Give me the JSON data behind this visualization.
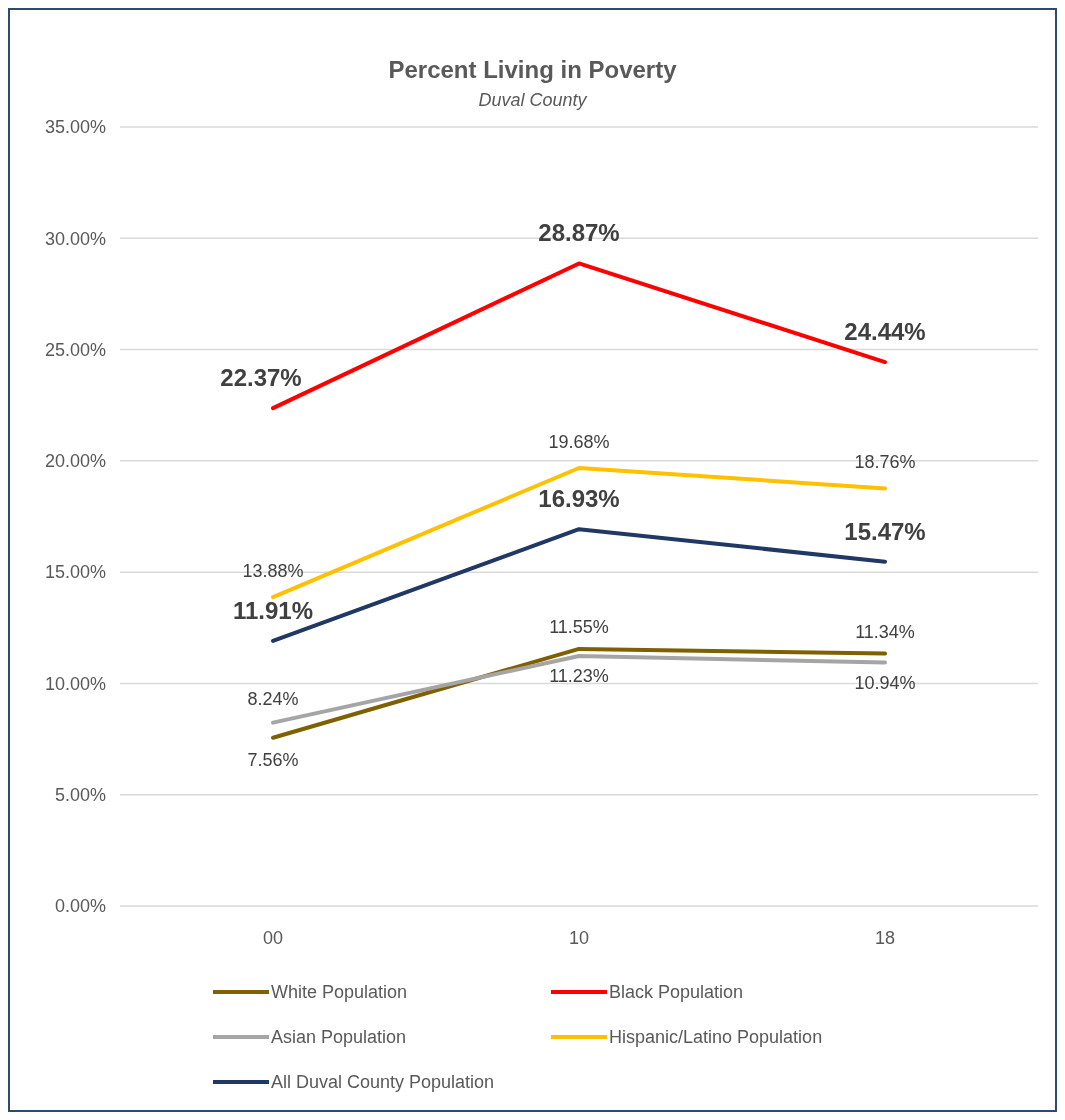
{
  "chart_data": {
    "type": "line",
    "title": "Percent Living in Poverty",
    "subtitle": "Duval County",
    "categories": [
      "00",
      "10",
      "18"
    ],
    "series": [
      {
        "name": "White Population",
        "color": "#7f6000",
        "values": [
          7.56,
          11.55,
          11.34
        ],
        "value_labels": [
          "7.56%",
          "11.55%",
          "11.34%"
        ]
      },
      {
        "name": "Black Population",
        "color": "#ff0000",
        "values": [
          22.37,
          28.87,
          24.44
        ],
        "value_labels": [
          "22.37%",
          "28.87%",
          "24.44%"
        ]
      },
      {
        "name": "Asian Population",
        "color": "#a5a5a5",
        "values": [
          8.24,
          11.23,
          10.94
        ],
        "value_labels": [
          "8.24%",
          "11.23%",
          "10.94%"
        ]
      },
      {
        "name": "Hispanic/Latino Population",
        "color": "#ffc000",
        "values": [
          13.88,
          19.68,
          18.76
        ],
        "value_labels": [
          "13.88%",
          "19.68%",
          "18.76%"
        ]
      },
      {
        "name": "All Duval County Population",
        "color": "#203864",
        "values": [
          11.91,
          16.93,
          15.47
        ],
        "value_labels": [
          "11.91%",
          "16.93%",
          "15.47%"
        ]
      }
    ],
    "ylim": [
      0,
      35
    ],
    "yticks": [
      {
        "value": 0,
        "label": "0.00%"
      },
      {
        "value": 5,
        "label": "5.00%"
      },
      {
        "value": 10,
        "label": "10.00%"
      },
      {
        "value": 15,
        "label": "15.00%"
      },
      {
        "value": 20,
        "label": "20.00%"
      },
      {
        "value": 25,
        "label": "25.00%"
      },
      {
        "value": 30,
        "label": "30.00%"
      },
      {
        "value": 35,
        "label": "35.00%"
      }
    ],
    "grid": "y",
    "legend": "bottom",
    "marker": "none",
    "line_style": "solid"
  }
}
